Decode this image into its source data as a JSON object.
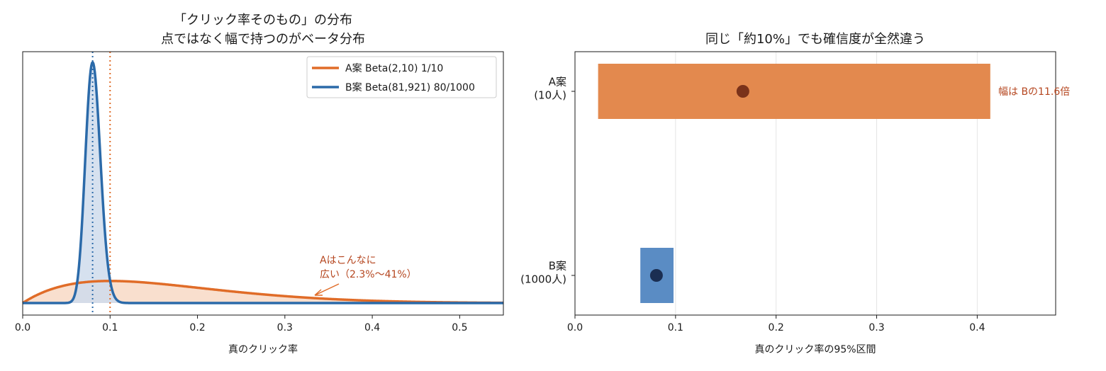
{
  "chart_data": [
    {
      "type": "line",
      "title": [
        "「クリック率そのもの」の分布",
        "点ではなく幅で持つのがベータ分布"
      ],
      "xlabel": "真のクリック率",
      "ylabel": "",
      "xlim": [
        0.0,
        0.55
      ],
      "xticks": [
        "0.0",
        "0.1",
        "0.2",
        "0.3",
        "0.4",
        "0.5"
      ],
      "y_ticks_shown": false,
      "legend_position": "top-right",
      "series": [
        {
          "name": "A案 Beta(2,10)  1/10",
          "alpha": 2,
          "beta": 10,
          "observed_rate": 0.1,
          "color": "#e06c28",
          "fill": "#f8d9c6"
        },
        {
          "name": "B案 Beta(81,921)  80/1000",
          "alpha": 81,
          "beta": 921,
          "observed_rate": 0.08,
          "color": "#2b6aa9",
          "fill": "#cfdcec"
        }
      ],
      "annotation": {
        "lines": [
          "Aはこんなに",
          "広い（2.3%〜41%）"
        ],
        "points_to_x": 0.33,
        "color": "#b5461f"
      }
    },
    {
      "type": "bar",
      "orientation": "horizontal",
      "title": "同じ「約10%」でも確信度が全然違う",
      "xlabel": "真のクリック率の95%区間",
      "xlim": [
        0.0,
        0.478
      ],
      "xticks": [
        "0.0",
        "0.1",
        "0.2",
        "0.3",
        "0.4"
      ],
      "grid": "vertical",
      "categories": [
        "A案\n(10人)",
        "B案\n(1000人)"
      ],
      "intervals": [
        {
          "low": 0.023,
          "high": 0.413,
          "point": 0.167,
          "bar_color": "#e3894e",
          "dot_color": "#7a321a"
        },
        {
          "low": 0.065,
          "high": 0.098,
          "point": 0.081,
          "bar_color": "#5a8cc4",
          "dot_color": "#1b2e52"
        }
      ],
      "annotation": "幅は Bの11.6倍",
      "annotation_color": "#b5461f"
    }
  ]
}
